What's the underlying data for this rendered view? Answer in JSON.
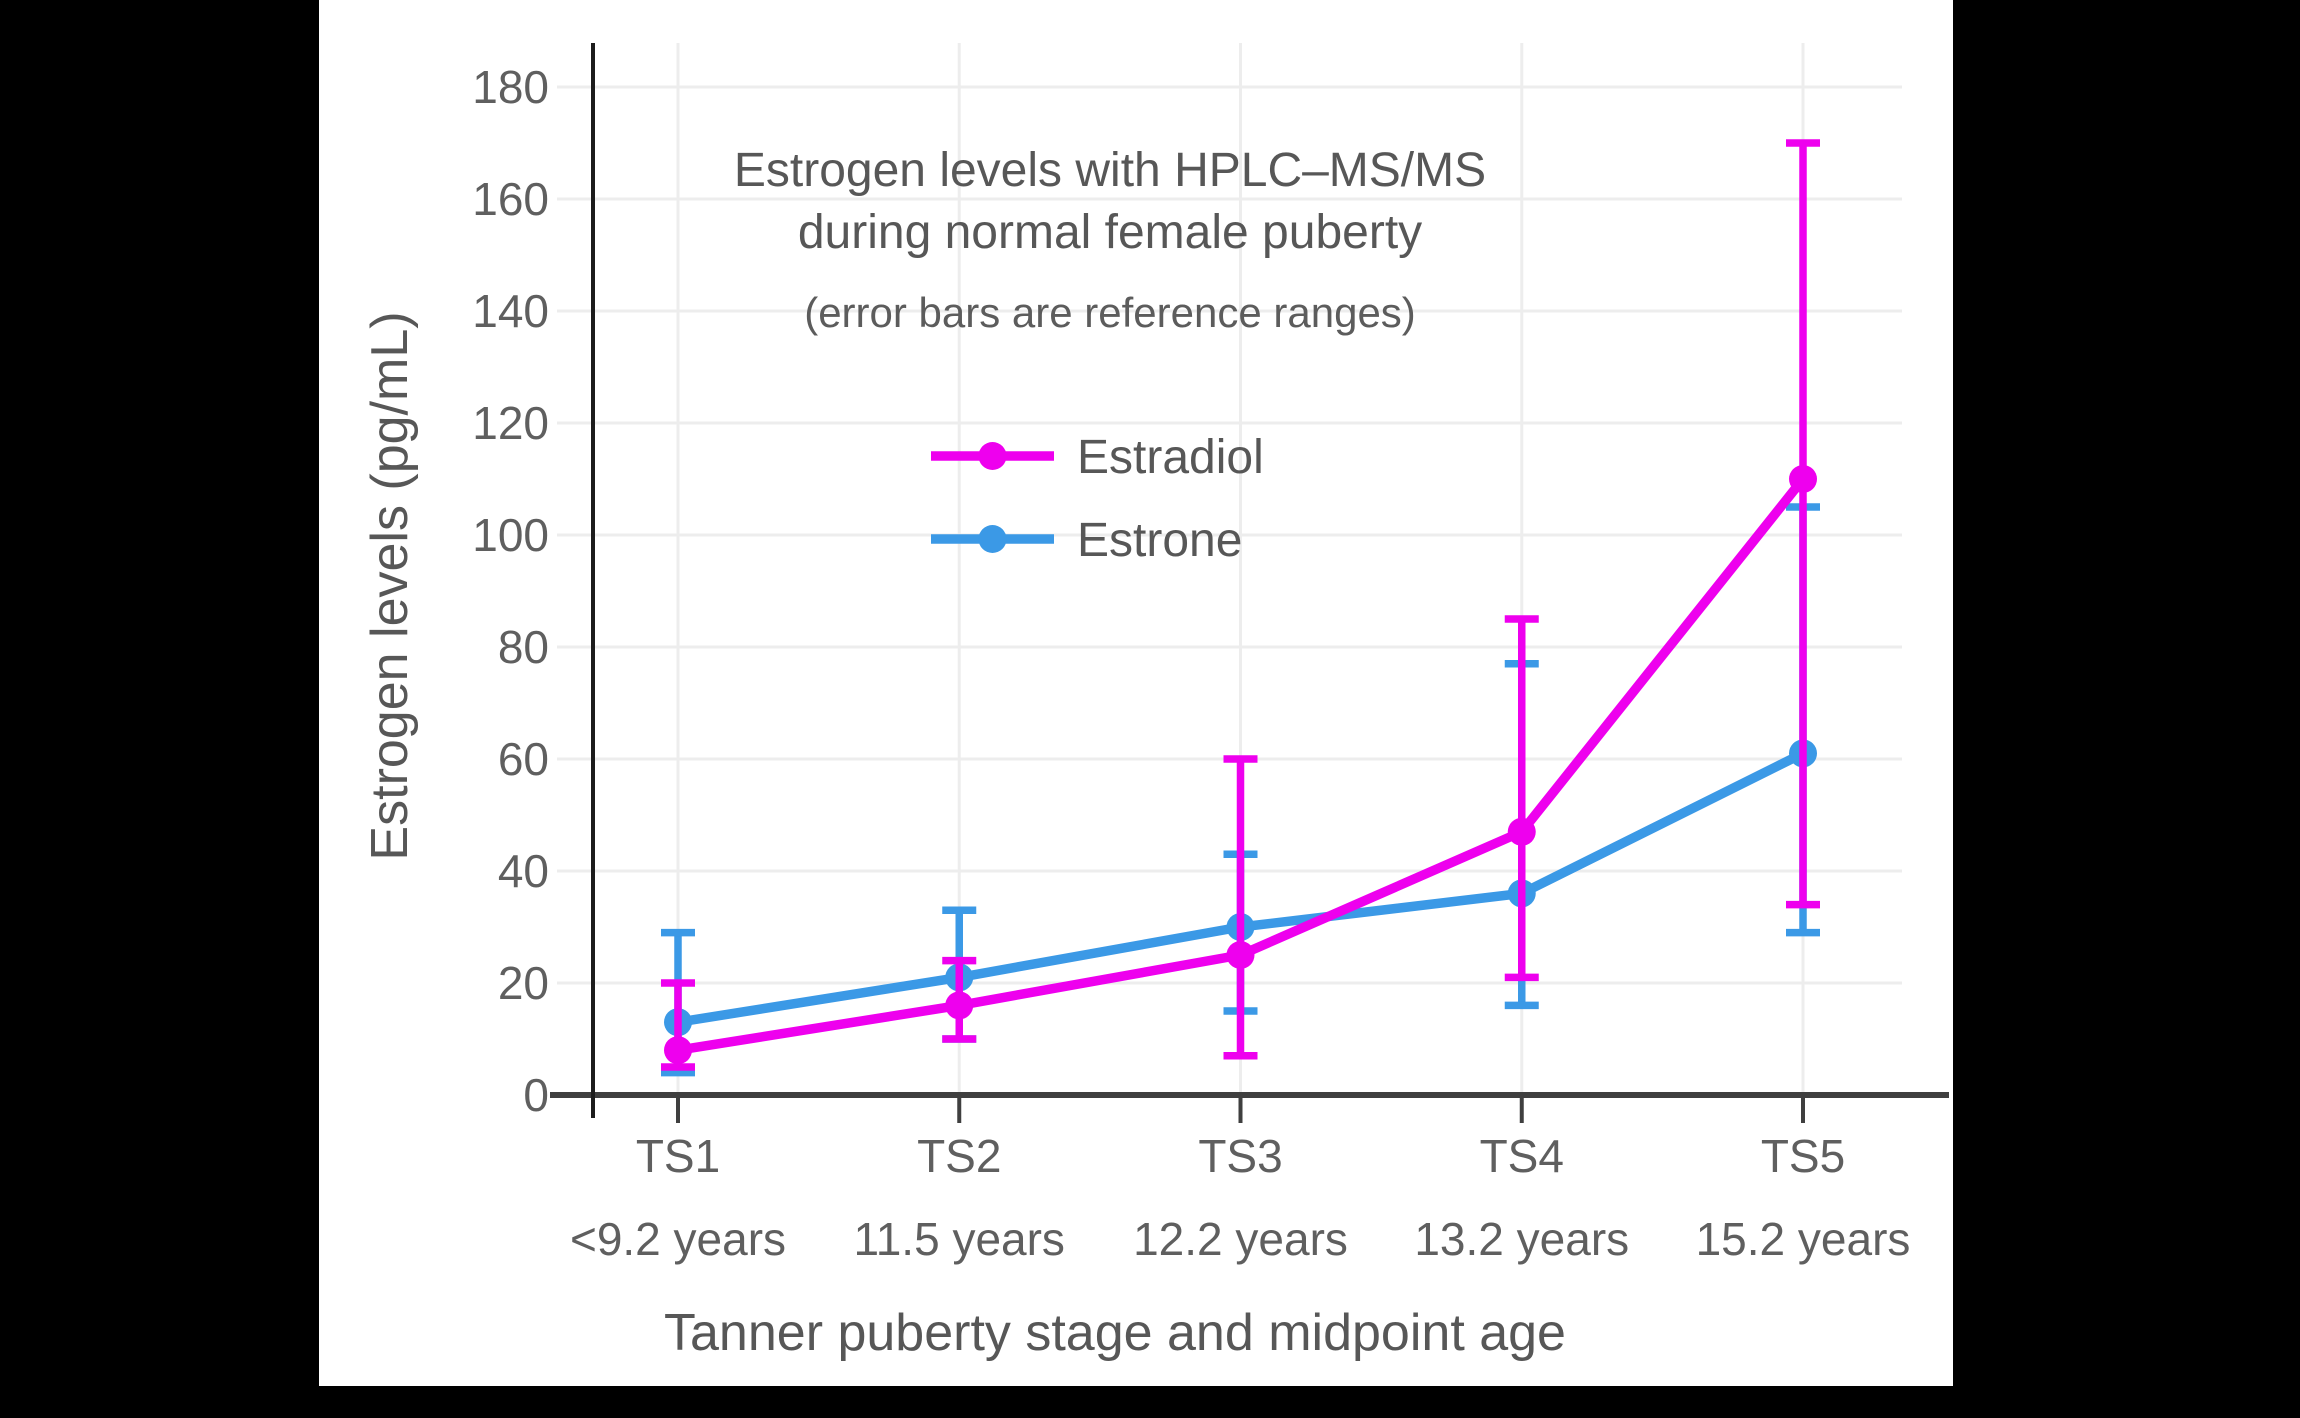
{
  "stage": {
    "background": "#000000",
    "panel_background": "#ffffff"
  },
  "chart_data": {
    "type": "line",
    "title_lines": [
      "Estrogen levels with HPLC–MS/MS",
      "during normal female puberty"
    ],
    "subtitle": "(error bars are reference ranges)",
    "xlabel": "Tanner puberty stage and midpoint age",
    "ylabel": "Estrogen levels (pg/mL)",
    "categories": [
      "TS1",
      "TS2",
      "TS3",
      "TS4",
      "TS5"
    ],
    "category_sublabels": [
      "<9.2 years",
      "11.5 years",
      "12.2 years",
      "13.2 years",
      "15.2 years"
    ],
    "ylim": [
      0,
      180
    ],
    "yticks": [
      0,
      20,
      40,
      60,
      80,
      100,
      120,
      140,
      160,
      180
    ],
    "grid": true,
    "legend_position": "inside-upper-middle",
    "error_bars": "reference ranges",
    "series": [
      {
        "name": "Estradiol",
        "color": "#ee00ee",
        "values": [
          8,
          16,
          25,
          47,
          110
        ],
        "error_low": [
          5,
          10,
          7,
          21,
          34
        ],
        "error_high": [
          20,
          24,
          60,
          85,
          170
        ]
      },
      {
        "name": "Estrone",
        "color": "#3b99e6",
        "values": [
          13,
          21,
          30,
          36,
          61
        ],
        "error_low": [
          4,
          10,
          15,
          16,
          29
        ],
        "error_high": [
          29,
          33,
          43,
          77,
          105
        ]
      }
    ]
  },
  "style_colors": {
    "text_gray": "#575757",
    "tick_label_gray": "#5f5f5f",
    "gridline": "#ededed",
    "x_spine": "#3f3f3f",
    "y_spine": "#1c1c1c"
  }
}
